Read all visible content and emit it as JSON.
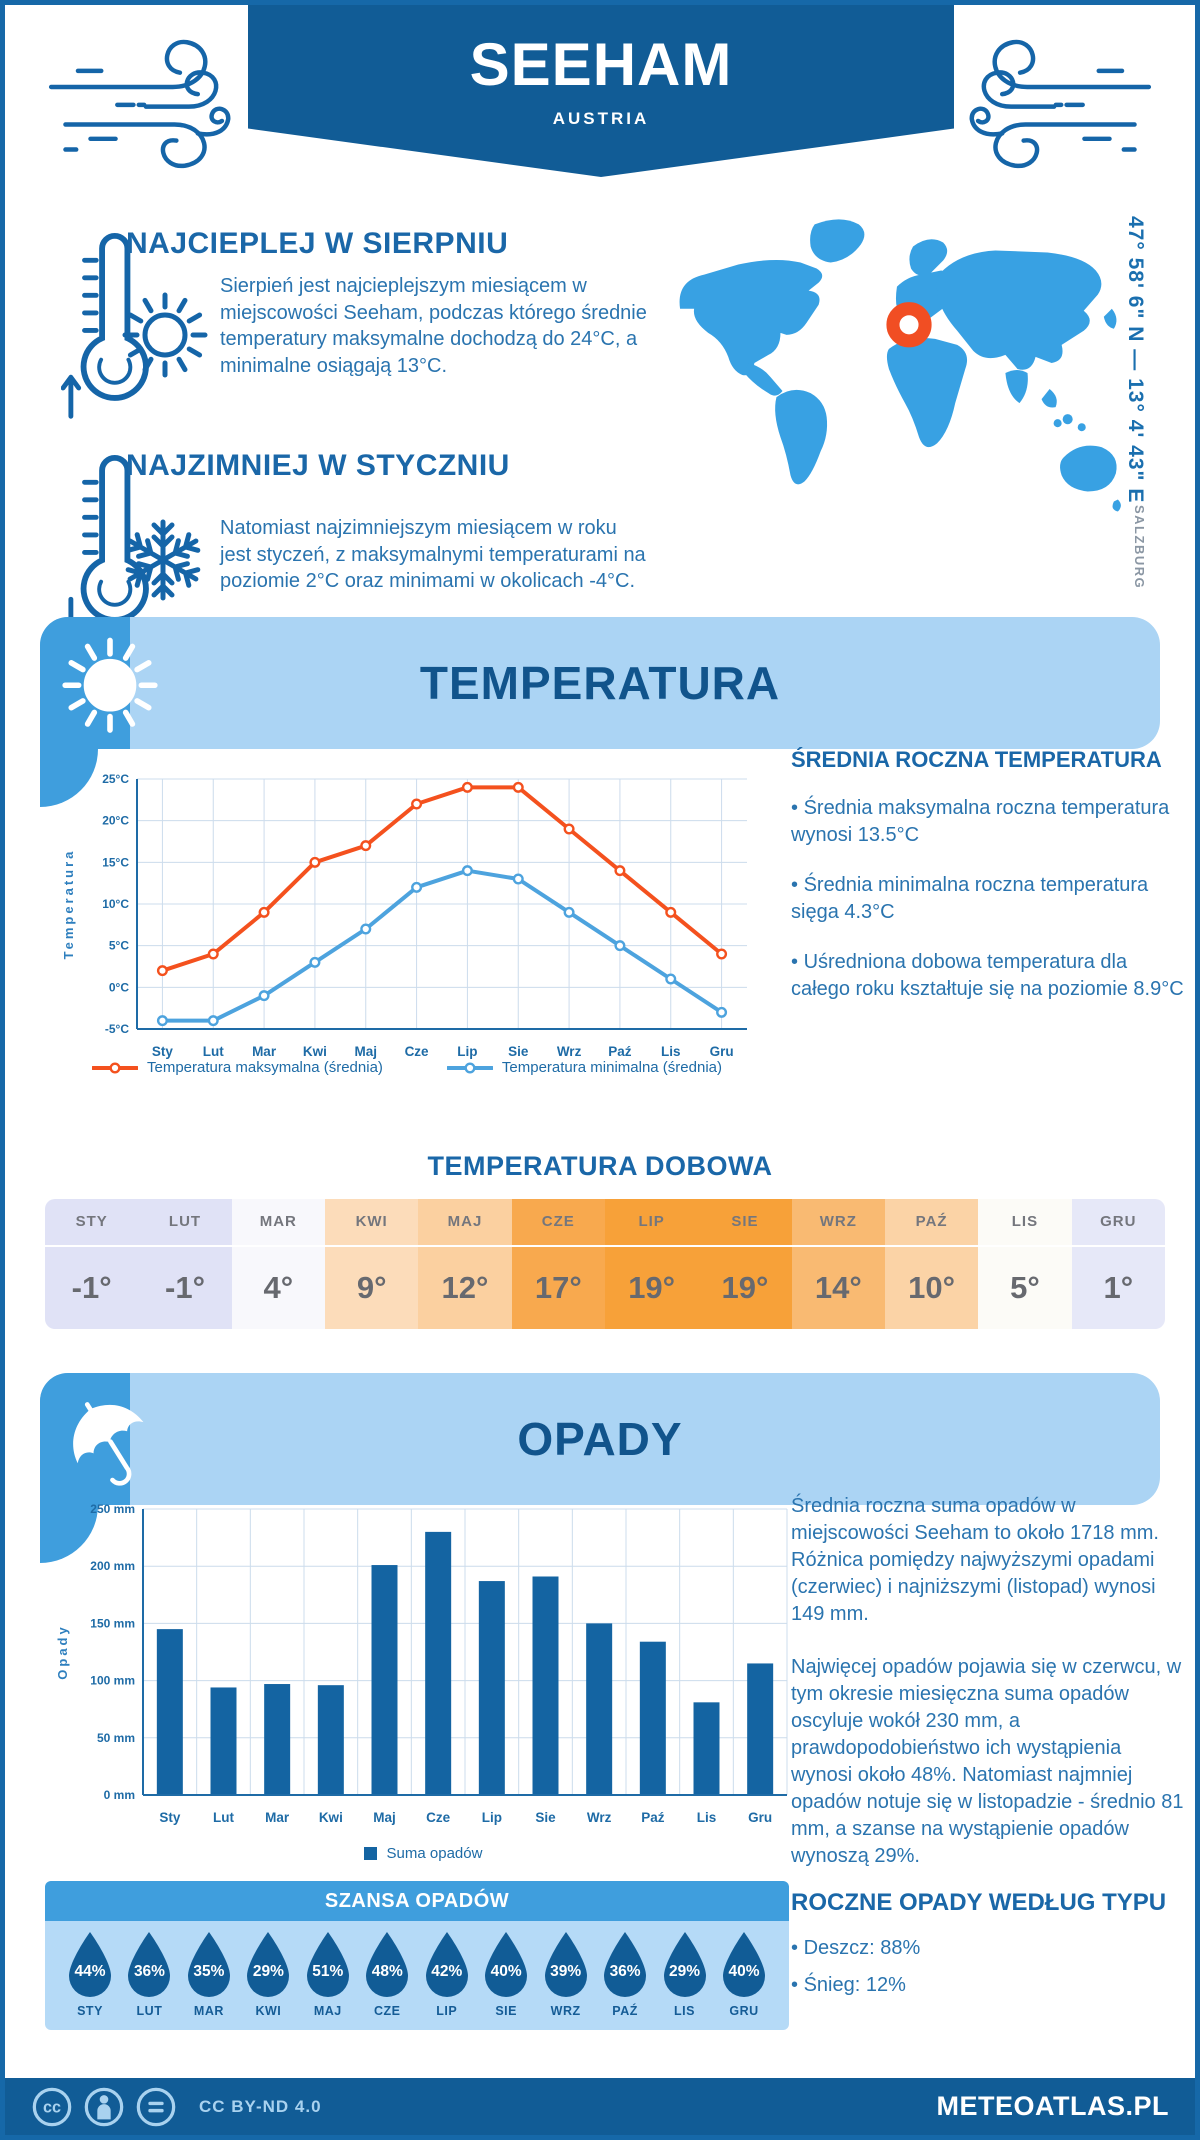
{
  "theme": {
    "brand_blue": "#115c96",
    "accent_blue": "#3f9edd",
    "light_blue_banner": "#abd4f4",
    "chance_body_blue": "#b5daf7",
    "heading_blue": "#1a67a8",
    "body_text_blue": "#2a74af",
    "map_land_blue": "#38a1e3",
    "marker_orange": "#f14e23",
    "border_blue": "#1668a8"
  },
  "header": {
    "title": "SEEHAM",
    "subtitle": "AUSTRIA"
  },
  "highlights": {
    "warmest": {
      "title": "NAJCIEPLEJ W SIERPNIU",
      "text": "Sierpień jest najcieplejszym miesiącem w miejscowości Seeham, podczas którego średnie temperatury maksymalne dochodzą do 24°C, a minimalne osiągają 13°C."
    },
    "coldest": {
      "title": "NAJZIMNIEJ W STYCZNIU",
      "text": "Natomiast najzimniejszym miesiącem w roku jest styczeń, z maksymalnymi temperaturami na poziomie 2°C oraz minimami w okolicach -4°C."
    }
  },
  "map": {
    "coordinates": "47° 58' 6\" N — 13° 4' 43\" E",
    "region": "SALZBURG"
  },
  "temperature": {
    "section_title": "TEMPERATURA",
    "annual_title": "ŚREDNIA ROCZNA TEMPERATURA",
    "annual_bullets": [
      "Średnia maksymalna roczna temperatura wynosi 13.5°C",
      "Średnia minimalna roczna temperatura sięga 4.3°C",
      "Uśredniona dobowa temperatura dla całego roku kształtuje się na poziomie 8.9°C"
    ],
    "daily_title": "TEMPERATURA DOBOWA",
    "daily_months": [
      "STY",
      "LUT",
      "MAR",
      "KWI",
      "MAJ",
      "CZE",
      "LIP",
      "SIE",
      "WRZ",
      "PAŹ",
      "LIS",
      "GRU"
    ],
    "daily_values": [
      "-1°",
      "-1°",
      "4°",
      "9°",
      "12°",
      "17°",
      "19°",
      "19°",
      "14°",
      "10°",
      "5°",
      "1°"
    ],
    "daily_cell_colors": [
      "#e0e2f6",
      "#e0e2f6",
      "#f8f8fc",
      "#fcdcba",
      "#fbd0a0",
      "#f8a94e",
      "#f7a139",
      "#f7a139",
      "#f9ba72",
      "#fbd3a6",
      "#fcfbf7",
      "#e6e8f8"
    ]
  },
  "precipitation": {
    "section_title": "OPADY",
    "paragraph1": "Średnia roczna suma opadów w miejscowości Seeham to około 1718 mm. Różnica pomiędzy najwyższymi opadami (czerwiec) i najniższymi (listopad) wynosi 149 mm.",
    "paragraph2": "Najwięcej opadów pojawia się w czerwcu, w tym okresie miesięczna suma opadów oscyluje wokół 230 mm, a prawdopodobieństwo ich wystąpienia wynosi około 48%. Natomiast najmniej opadów notuje się w listopadzie - średnio 81 mm, a szanse na wystąpienie opadów wynoszą 29%.",
    "type_title": "ROCZNE OPADY WEDŁUG TYPU",
    "type_bullets": [
      "Deszcz: 88%",
      "Śnieg: 12%"
    ],
    "chance_title": "SZANSA OPADÓW",
    "chance_months": [
      "STY",
      "LUT",
      "MAR",
      "KWI",
      "MAJ",
      "CZE",
      "LIP",
      "SIE",
      "WRZ",
      "PAŹ",
      "LIS",
      "GRU"
    ],
    "chance_values": [
      "44%",
      "36%",
      "35%",
      "29%",
      "51%",
      "48%",
      "42%",
      "40%",
      "39%",
      "36%",
      "29%",
      "40%"
    ]
  },
  "footer": {
    "license": "CC BY-ND 4.0",
    "site": "METEOATLAS.PL"
  },
  "chart_data": [
    {
      "type": "line",
      "title": "Temperatura",
      "categories": [
        "Sty",
        "Lut",
        "Mar",
        "Kwi",
        "Maj",
        "Cze",
        "Lip",
        "Sie",
        "Wrz",
        "Paź",
        "Lis",
        "Gru"
      ],
      "series": [
        {
          "name": "Temperatura maksymalna (średnia)",
          "color": "#f4511e",
          "values": [
            2,
            4,
            9,
            15,
            17,
            22,
            24,
            24,
            19,
            14,
            9,
            4
          ]
        },
        {
          "name": "Temperatura minimalna (średnia)",
          "color": "#4da3de",
          "values": [
            -4,
            -4,
            -1,
            3,
            7,
            12,
            14,
            13,
            9,
            5,
            1,
            -3
          ]
        }
      ],
      "xlabel": "",
      "ylabel": "Temperatura",
      "ylim": [
        -5,
        25
      ],
      "ytick_step": 5,
      "unit": "°C",
      "grid": true,
      "legend_position": "bottom"
    },
    {
      "type": "bar",
      "title": "Opady",
      "categories": [
        "Sty",
        "Lut",
        "Mar",
        "Kwi",
        "Maj",
        "Cze",
        "Lip",
        "Sie",
        "Wrz",
        "Paź",
        "Lis",
        "Gru"
      ],
      "values": [
        145,
        94,
        97,
        96,
        201,
        230,
        187,
        191,
        150,
        134,
        81,
        115
      ],
      "legend": "Suma opadów",
      "bar_color": "#1464a2",
      "xlabel": "",
      "ylabel": "Opady",
      "ylim": [
        0,
        250
      ],
      "ytick_step": 50,
      "unit": " mm",
      "grid": true,
      "legend_position": "bottom"
    }
  ]
}
